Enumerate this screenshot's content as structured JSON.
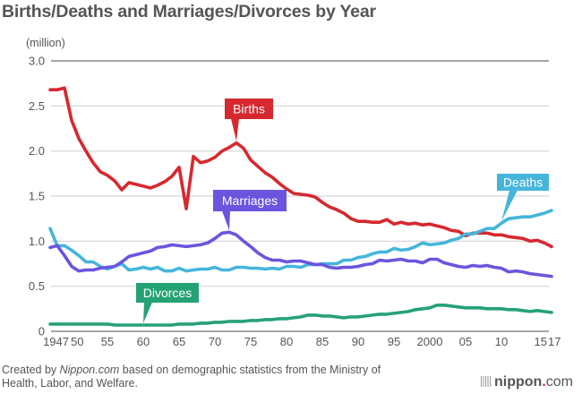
{
  "chart_data": {
    "type": "line",
    "title": "Births/Deaths and Marriages/Divorces by Year",
    "ylabel": "(million)",
    "xlabel": "",
    "ylim": [
      0,
      3.0
    ],
    "xlim": [
      1947,
      2017
    ],
    "yticks": [
      {
        "value": 0,
        "label": "0"
      },
      {
        "value": 0.5,
        "label": "0.5"
      },
      {
        "value": 1.0,
        "label": "1.0"
      },
      {
        "value": 1.5,
        "label": "1.5"
      },
      {
        "value": 2.0,
        "label": "2.0"
      },
      {
        "value": 2.5,
        "label": "2.5"
      },
      {
        "value": 3.0,
        "label": "3.0"
      }
    ],
    "xticks": [
      {
        "value": 1947,
        "label": "1947"
      },
      {
        "value": 1950,
        "label": "50"
      },
      {
        "value": 1955,
        "label": "55"
      },
      {
        "value": 1960,
        "label": "60"
      },
      {
        "value": 1965,
        "label": "65"
      },
      {
        "value": 1970,
        "label": "70"
      },
      {
        "value": 1975,
        "label": "75"
      },
      {
        "value": 1980,
        "label": "80"
      },
      {
        "value": 1985,
        "label": "85"
      },
      {
        "value": 1990,
        "label": "90"
      },
      {
        "value": 1995,
        "label": "95"
      },
      {
        "value": 2000,
        "label": "2000"
      },
      {
        "value": 2005,
        "label": "05"
      },
      {
        "value": 2010,
        "label": "10"
      },
      {
        "value": 2015,
        "label": "15"
      },
      {
        "value": 2017,
        "label": "17"
      }
    ],
    "grid": true,
    "x_start": 1947,
    "series": [
      {
        "name": "Births",
        "color": "#d7282f",
        "label_year": 1973,
        "values": [
          2.68,
          2.68,
          2.7,
          2.34,
          2.14,
          2.0,
          1.87,
          1.77,
          1.73,
          1.67,
          1.57,
          1.65,
          1.63,
          1.61,
          1.59,
          1.62,
          1.66,
          1.72,
          1.82,
          1.36,
          1.94,
          1.87,
          1.89,
          1.93,
          2.0,
          2.04,
          2.09,
          2.03,
          1.9,
          1.83,
          1.76,
          1.71,
          1.64,
          1.58,
          1.53,
          1.52,
          1.51,
          1.49,
          1.43,
          1.38,
          1.35,
          1.31,
          1.25,
          1.22,
          1.22,
          1.21,
          1.21,
          1.24,
          1.19,
          1.21,
          1.19,
          1.2,
          1.18,
          1.19,
          1.17,
          1.15,
          1.12,
          1.11,
          1.06,
          1.09,
          1.09,
          1.09,
          1.07,
          1.07,
          1.05,
          1.04,
          1.03,
          1.0,
          1.01,
          0.98,
          0.94
        ]
      },
      {
        "name": "Deaths",
        "color": "#45b5db",
        "label_year": 2010,
        "values": [
          1.14,
          0.95,
          0.95,
          0.9,
          0.84,
          0.77,
          0.77,
          0.72,
          0.69,
          0.72,
          0.75,
          0.68,
          0.69,
          0.71,
          0.69,
          0.71,
          0.67,
          0.67,
          0.7,
          0.67,
          0.68,
          0.69,
          0.69,
          0.71,
          0.68,
          0.68,
          0.71,
          0.71,
          0.7,
          0.7,
          0.69,
          0.7,
          0.69,
          0.72,
          0.72,
          0.71,
          0.74,
          0.74,
          0.75,
          0.75,
          0.75,
          0.79,
          0.79,
          0.82,
          0.83,
          0.86,
          0.88,
          0.88,
          0.92,
          0.9,
          0.91,
          0.94,
          0.98,
          0.96,
          0.97,
          0.98,
          1.01,
          1.03,
          1.08,
          1.08,
          1.11,
          1.14,
          1.14,
          1.2,
          1.25,
          1.26,
          1.27,
          1.27,
          1.29,
          1.31,
          1.34
        ]
      },
      {
        "name": "Marriages",
        "color": "#6a55df",
        "label_year": 1972,
        "values": [
          0.93,
          0.95,
          0.84,
          0.72,
          0.67,
          0.68,
          0.68,
          0.7,
          0.71,
          0.72,
          0.77,
          0.83,
          0.85,
          0.87,
          0.89,
          0.93,
          0.94,
          0.96,
          0.95,
          0.94,
          0.95,
          0.96,
          0.98,
          1.03,
          1.09,
          1.1,
          1.07,
          1.0,
          0.94,
          0.87,
          0.82,
          0.79,
          0.79,
          0.77,
          0.78,
          0.78,
          0.76,
          0.74,
          0.74,
          0.71,
          0.7,
          0.71,
          0.71,
          0.72,
          0.74,
          0.75,
          0.79,
          0.78,
          0.79,
          0.8,
          0.78,
          0.78,
          0.76,
          0.8,
          0.8,
          0.76,
          0.74,
          0.72,
          0.71,
          0.73,
          0.72,
          0.73,
          0.71,
          0.7,
          0.66,
          0.67,
          0.66,
          0.64,
          0.63,
          0.62,
          0.61
        ]
      },
      {
        "name": "Divorces",
        "color": "#25a274",
        "label_year": 1960,
        "values": [
          0.08,
          0.08,
          0.08,
          0.08,
          0.08,
          0.08,
          0.08,
          0.08,
          0.08,
          0.07,
          0.07,
          0.07,
          0.07,
          0.07,
          0.07,
          0.07,
          0.07,
          0.07,
          0.08,
          0.08,
          0.08,
          0.09,
          0.09,
          0.1,
          0.1,
          0.11,
          0.11,
          0.11,
          0.12,
          0.12,
          0.13,
          0.13,
          0.14,
          0.14,
          0.15,
          0.16,
          0.18,
          0.18,
          0.17,
          0.17,
          0.16,
          0.15,
          0.16,
          0.16,
          0.17,
          0.18,
          0.19,
          0.19,
          0.2,
          0.21,
          0.22,
          0.24,
          0.25,
          0.26,
          0.29,
          0.29,
          0.28,
          0.27,
          0.26,
          0.26,
          0.26,
          0.25,
          0.25,
          0.25,
          0.24,
          0.24,
          0.23,
          0.22,
          0.23,
          0.22,
          0.21
        ]
      }
    ]
  },
  "footer": {
    "prefix": "Created by ",
    "source_name": "Nippon.com",
    "suffix": " based on demographic statistics from the Ministry of Health, Labor, and Welfare."
  },
  "logo": {
    "name": "nippon",
    "dot": ".",
    "tld": "com"
  }
}
